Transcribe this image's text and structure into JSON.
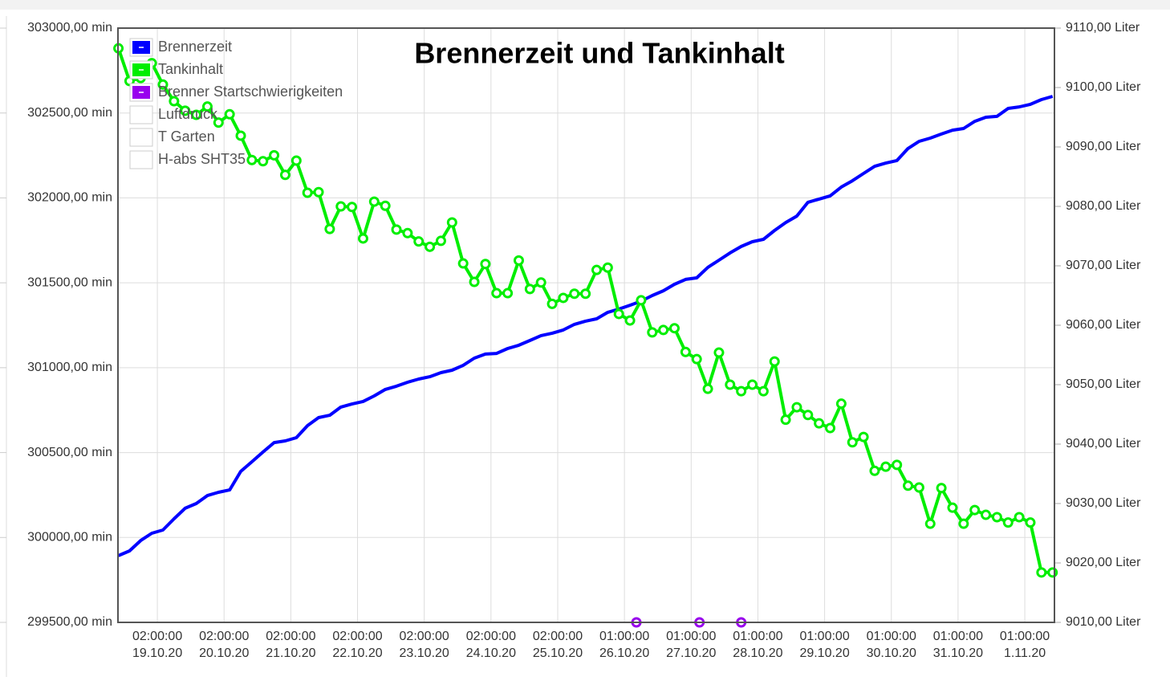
{
  "chart_data": {
    "type": "line",
    "title": "Brennerzeit und Tankinhalt",
    "xlim": [
      "2020-10-18T09:50Z",
      "2020-11-01T10:40Z"
    ],
    "xticks": [
      {
        "value": "2020-10-19T00:00Z",
        "label": [
          "02:00:00",
          "19.10.20"
        ]
      },
      {
        "value": "2020-10-20T00:00Z",
        "label": [
          "02:00:00",
          "20.10.20"
        ]
      },
      {
        "value": "2020-10-21T00:00Z",
        "label": [
          "02:00:00",
          "21.10.20"
        ]
      },
      {
        "value": "2020-10-22T00:00Z",
        "label": [
          "02:00:00",
          "22.10.20"
        ]
      },
      {
        "value": "2020-10-23T00:00Z",
        "label": [
          "02:00:00",
          "23.10.20"
        ]
      },
      {
        "value": "2020-10-24T00:00Z",
        "label": [
          "02:00:00",
          "24.10.20"
        ]
      },
      {
        "value": "2020-10-25T00:00Z",
        "label": [
          "02:00:00",
          "25.10.20"
        ]
      },
      {
        "value": "2020-10-26T00:00Z",
        "label": [
          "01:00:00",
          "26.10.20"
        ]
      },
      {
        "value": "2020-10-27T00:00Z",
        "label": [
          "01:00:00",
          "27.10.20"
        ]
      },
      {
        "value": "2020-10-28T00:00Z",
        "label": [
          "01:00:00",
          "28.10.20"
        ]
      },
      {
        "value": "2020-10-29T00:00Z",
        "label": [
          "01:00:00",
          "29.10.20"
        ]
      },
      {
        "value": "2020-10-30T00:00Z",
        "label": [
          "01:00:00",
          "30.10.20"
        ]
      },
      {
        "value": "2020-10-31T00:00Z",
        "label": [
          "01:00:00",
          "31.10.20"
        ]
      },
      {
        "value": "2020-11-01T00:00Z",
        "label": [
          "01:00:00",
          "1.11.20"
        ]
      }
    ],
    "ylim": [
      299500,
      303000
    ],
    "yticks": [
      {
        "value": 299500,
        "label": "299500,00 min"
      },
      {
        "value": 300000,
        "label": "300000,00 min"
      },
      {
        "value": 300500,
        "label": "300500,00 min"
      },
      {
        "value": 301000,
        "label": "301000,00 min"
      },
      {
        "value": 301500,
        "label": "301500,00 min"
      },
      {
        "value": 302000,
        "label": "302000,00 min"
      },
      {
        "value": 302500,
        "label": "302500,00 min"
      },
      {
        "value": 303000,
        "label": "303000,00 min"
      }
    ],
    "y2lim": [
      9010,
      9110
    ],
    "y2ticks": [
      {
        "value": 9010,
        "label": "9010,00 Liter"
      },
      {
        "value": 9020,
        "label": "9020,00 Liter"
      },
      {
        "value": 9030,
        "label": "9030,00 Liter"
      },
      {
        "value": 9040,
        "label": "9040,00 Liter"
      },
      {
        "value": 9050,
        "label": "9050,00 Liter"
      },
      {
        "value": 9060,
        "label": "9060,00 Liter"
      },
      {
        "value": 9070,
        "label": "9070,00 Liter"
      },
      {
        "value": 9080,
        "label": "9080,00 Liter"
      },
      {
        "value": 9090,
        "label": "9090,00 Liter"
      },
      {
        "value": 9100,
        "label": "9100,00 Liter"
      },
      {
        "value": 9110,
        "label": "9110,00 Liter"
      }
    ],
    "grid": true,
    "legend": "top-left",
    "x": [
      "2020-10-18T10:00Z",
      "2020-10-18T14:00Z",
      "2020-10-18T18:00Z",
      "2020-10-18T22:00Z",
      "2020-10-19T02:00Z",
      "2020-10-19T06:00Z",
      "2020-10-19T10:00Z",
      "2020-10-19T14:00Z",
      "2020-10-19T18:00Z",
      "2020-10-19T22:00Z",
      "2020-10-20T02:00Z",
      "2020-10-20T06:00Z",
      "2020-10-20T10:00Z",
      "2020-10-20T14:00Z",
      "2020-10-20T18:00Z",
      "2020-10-20T22:00Z",
      "2020-10-21T02:00Z",
      "2020-10-21T06:00Z",
      "2020-10-21T10:00Z",
      "2020-10-21T14:00Z",
      "2020-10-21T18:00Z",
      "2020-10-21T22:00Z",
      "2020-10-22T02:00Z",
      "2020-10-22T06:00Z",
      "2020-10-22T10:00Z",
      "2020-10-22T14:00Z",
      "2020-10-22T18:00Z",
      "2020-10-22T22:00Z",
      "2020-10-23T02:00Z",
      "2020-10-23T06:00Z",
      "2020-10-23T10:00Z",
      "2020-10-23T14:00Z",
      "2020-10-23T18:00Z",
      "2020-10-23T22:00Z",
      "2020-10-24T02:00Z",
      "2020-10-24T06:00Z",
      "2020-10-24T10:00Z",
      "2020-10-24T14:00Z",
      "2020-10-24T18:00Z",
      "2020-10-24T22:00Z",
      "2020-10-25T02:00Z",
      "2020-10-25T06:00Z",
      "2020-10-25T10:00Z",
      "2020-10-25T14:00Z",
      "2020-10-25T18:00Z",
      "2020-10-25T22:00Z",
      "2020-10-26T02:00Z",
      "2020-10-26T06:00Z",
      "2020-10-26T10:00Z",
      "2020-10-26T14:00Z",
      "2020-10-26T18:00Z",
      "2020-10-26T22:00Z",
      "2020-10-27T02:00Z",
      "2020-10-27T06:00Z",
      "2020-10-27T10:00Z",
      "2020-10-27T14:00Z",
      "2020-10-27T18:00Z",
      "2020-10-27T22:00Z",
      "2020-10-28T02:00Z",
      "2020-10-28T06:00Z",
      "2020-10-28T10:00Z",
      "2020-10-28T14:00Z",
      "2020-10-28T18:00Z",
      "2020-10-28T22:00Z",
      "2020-10-29T02:00Z",
      "2020-10-29T06:00Z",
      "2020-10-29T10:00Z",
      "2020-10-29T14:00Z",
      "2020-10-29T18:00Z",
      "2020-10-29T22:00Z",
      "2020-10-30T02:00Z",
      "2020-10-30T06:00Z",
      "2020-10-30T10:00Z",
      "2020-10-30T14:00Z",
      "2020-10-30T18:00Z",
      "2020-10-30T22:00Z",
      "2020-10-31T02:00Z",
      "2020-10-31T06:00Z",
      "2020-10-31T10:00Z",
      "2020-10-31T14:00Z",
      "2020-10-31T18:00Z",
      "2020-10-31T22:00Z",
      "2020-11-01T02:00Z",
      "2020-11-01T06:00Z",
      "2020-11-01T10:00Z"
    ],
    "series": [
      {
        "name": "Brennerzeit",
        "color": "#0000ff",
        "axis": "y",
        "markers": false,
        "values": [
          299893,
          299921,
          299982,
          300025,
          300044,
          300110,
          300172,
          300200,
          300247,
          300266,
          300280,
          300389,
          300446,
          300503,
          300559,
          300569,
          300588,
          300659,
          300706,
          300720,
          300768,
          300786,
          300801,
          300834,
          300872,
          300891,
          300914,
          300933,
          300947,
          300971,
          300985,
          301014,
          301056,
          301080,
          301084,
          301113,
          301132,
          301160,
          301189,
          301203,
          301222,
          301255,
          301274,
          301288,
          301326,
          301345,
          301368,
          301392,
          301425,
          301453,
          301491,
          301520,
          301529,
          301591,
          301633,
          301676,
          301714,
          301742,
          301756,
          301808,
          301855,
          301893,
          301974,
          301993,
          302012,
          302064,
          302101,
          302144,
          302186,
          302205,
          302220,
          302291,
          302333,
          302352,
          302376,
          302399,
          302409,
          302451,
          302475,
          302480,
          302527,
          302536,
          302551,
          302579,
          302598
        ]
      },
      {
        "name": "Tankinhalt",
        "color": "#00ee00",
        "axis": "y2",
        "markers": true,
        "values": [
          9106.6,
          9101.1,
          9101.6,
          9104.1,
          9100.5,
          9097.7,
          9096.1,
          9095.4,
          9096.8,
          9094.1,
          9095.5,
          9091.9,
          9087.8,
          9087.6,
          9088.6,
          9085.3,
          9087.7,
          9082.3,
          9082.4,
          9076.2,
          9080.0,
          9079.9,
          9074.6,
          9080.8,
          9080.1,
          9076.1,
          9075.5,
          9074.1,
          9073.2,
          9074.2,
          9077.3,
          9070.4,
          9067.3,
          9070.3,
          9065.4,
          9065.4,
          9070.9,
          9066.1,
          9067.2,
          9063.6,
          9064.6,
          9065.3,
          9065.3,
          9069.3,
          9069.7,
          9061.9,
          9060.8,
          9064.2,
          9058.8,
          9059.2,
          9059.5,
          9055.5,
          9054.3,
          9049.3,
          9055.4,
          9050.0,
          9048.9,
          9050.0,
          9048.9,
          9053.9,
          9044.1,
          9046.2,
          9044.9,
          9043.5,
          9042.7,
          9046.8,
          9040.3,
          9041.2,
          9035.5,
          9036.2,
          9036.5,
          9033.0,
          9032.7,
          9026.6,
          9032.6,
          9029.3,
          9026.6,
          9028.9,
          9028.1,
          9027.7,
          9026.8,
          9027.7,
          9026.8,
          9018.4,
          9018.4
        ]
      },
      {
        "name": "Brenner Startschwierigkeiten",
        "color": "#9900ee",
        "axis": "y2",
        "markers": true,
        "line": false,
        "x": [
          "2020-10-26T04:18Z",
          "2020-10-27T03:00Z",
          "2020-10-27T18:00Z"
        ],
        "values": [
          9010,
          9010,
          9010
        ]
      }
    ],
    "hidden_series": [
      "Luftdruck",
      "T Garten",
      "H-abs SHT35"
    ]
  }
}
